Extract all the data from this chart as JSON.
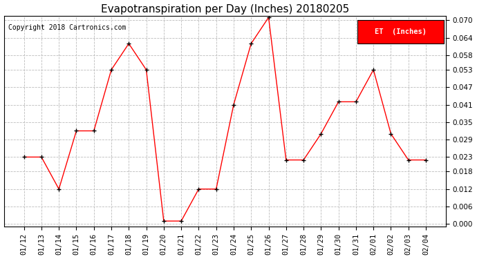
{
  "title": "Evapotranspiration per Day (Inches) 20180205",
  "copyright": "Copyright 2018 Cartronics.com",
  "legend_label": "ET  (Inches)",
  "legend_bg": "#ff0000",
  "legend_text_color": "#ffffff",
  "dates": [
    "01/12",
    "01/13",
    "01/14",
    "01/15",
    "01/16",
    "01/17",
    "01/18",
    "01/19",
    "01/20",
    "01/21",
    "01/22",
    "01/23",
    "01/24",
    "01/25",
    "01/26",
    "01/27",
    "01/28",
    "01/29",
    "01/30",
    "01/31",
    "02/01",
    "02/02",
    "02/03",
    "02/04"
  ],
  "values": [
    0.023,
    0.023,
    0.012,
    0.032,
    0.032,
    0.053,
    0.062,
    0.053,
    0.001,
    0.001,
    0.012,
    0.012,
    0.041,
    0.062,
    0.071,
    0.022,
    0.022,
    0.031,
    0.042,
    0.042,
    0.053,
    0.031,
    0.022,
    0.022
  ],
  "line_color": "#ff0000",
  "marker_color": "#000000",
  "ylim_min": -0.001,
  "ylim_max": 0.0715,
  "yticks": [
    0.0,
    0.006,
    0.012,
    0.018,
    0.023,
    0.029,
    0.035,
    0.041,
    0.047,
    0.053,
    0.058,
    0.064,
    0.07
  ],
  "grid_color": "#bbbbbb",
  "bg_color": "#ffffff",
  "title_fontsize": 11,
  "copyright_fontsize": 7,
  "tick_fontsize": 7.5
}
